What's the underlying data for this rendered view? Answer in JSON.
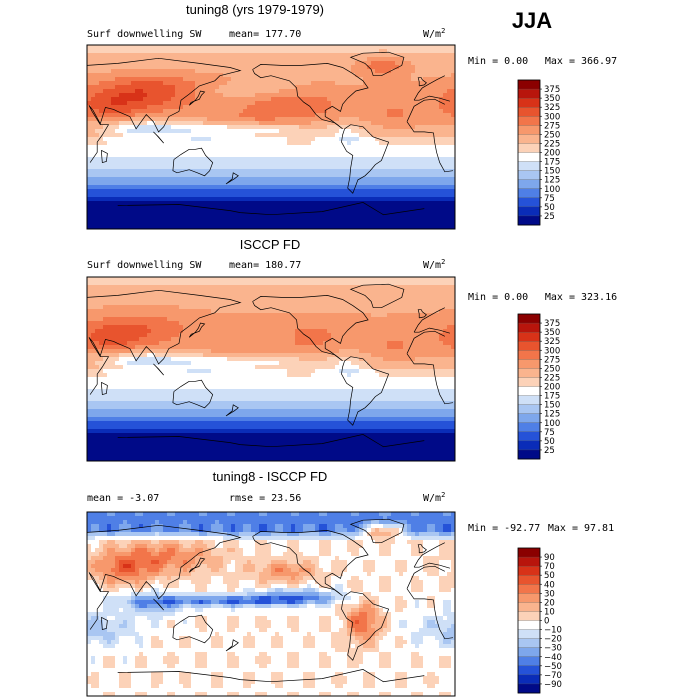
{
  "season": "JJA",
  "chart_data": [
    {
      "type": "heatmap",
      "title": "tuning8 (yrs 1979-1979)",
      "left_label": "Surf downwelling SW",
      "stat_label": "mean= 177.70",
      "units": "W/m",
      "units_sup": "2",
      "min_text": "Min =    0.00",
      "max_text": "Max = 366.97",
      "min": 0.0,
      "max": 366.97,
      "mean": 177.7,
      "colorbar_levels": [
        "375",
        "350",
        "325",
        "300",
        "275",
        "250",
        "225",
        "200",
        "175",
        "150",
        "125",
        "100",
        "75",
        "50",
        "25"
      ],
      "colorbar_colors": [
        "#8b0000",
        "#b8150c",
        "#d83218",
        "#e8542e",
        "#f2754a",
        "#f7986c",
        "#fab48e",
        "#fcd2b8",
        "#ffffff",
        "#cfe0f7",
        "#a9c6f2",
        "#7ea7ec",
        "#4f7fe6",
        "#2552d8",
        "#0a2cb8",
        "#000a88"
      ],
      "field": "clim_obs_model"
    },
    {
      "type": "heatmap",
      "title": "ISCCP FD",
      "left_label": "Surf downwelling SW",
      "stat_label": "mean= 180.77",
      "units": "W/m",
      "units_sup": "2",
      "min_text": "Min =    0.00",
      "max_text": "Max = 323.16",
      "min": 0.0,
      "max": 323.16,
      "mean": 180.77,
      "colorbar_levels": [
        "375",
        "350",
        "325",
        "300",
        "275",
        "250",
        "225",
        "200",
        "175",
        "150",
        "125",
        "100",
        "75",
        "50",
        "25"
      ],
      "colorbar_colors": [
        "#8b0000",
        "#b8150c",
        "#d83218",
        "#e8542e",
        "#f2754a",
        "#f7986c",
        "#fab48e",
        "#fcd2b8",
        "#ffffff",
        "#cfe0f7",
        "#a9c6f2",
        "#7ea7ec",
        "#4f7fe6",
        "#2552d8",
        "#0a2cb8",
        "#000a88"
      ],
      "field": "clim_obs"
    },
    {
      "type": "heatmap",
      "title": "tuning8 - ISCCP FD",
      "left_label": "mean =   -3.07",
      "stat_label": "rmse =  23.56",
      "units": "W/m",
      "units_sup": "2",
      "min_text": "Min = -92.77",
      "max_text": "Max =  97.81",
      "min": -92.77,
      "max": 97.81,
      "mean": -3.07,
      "rmse": 23.56,
      "colorbar_levels": [
        "90",
        "70",
        "50",
        "40",
        "30",
        "20",
        "10",
        "0",
        "−10",
        "−20",
        "−30",
        "−40",
        "−50",
        "−70",
        "−90"
      ],
      "colorbar_colors": [
        "#8b0000",
        "#b8150c",
        "#d83218",
        "#e8542e",
        "#f2754a",
        "#f7986c",
        "#fab48e",
        "#fcd2b8",
        "#ffffff",
        "#cfe0f7",
        "#a9c6f2",
        "#7ea7ec",
        "#4f7fe6",
        "#2552d8",
        "#0a2cb8",
        "#000a88"
      ],
      "field": "diff"
    }
  ]
}
